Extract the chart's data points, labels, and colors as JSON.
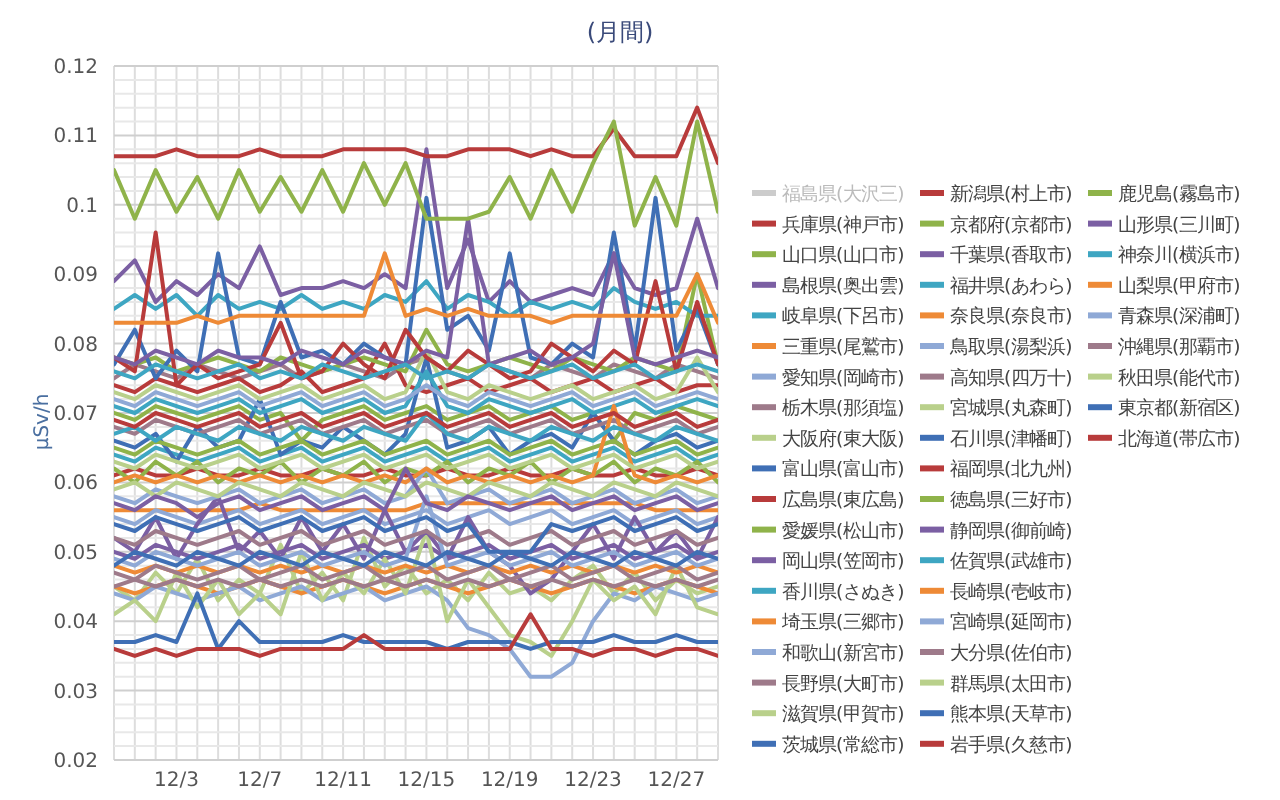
{
  "chart_data": {
    "type": "line",
    "title": "(月間)",
    "ylabel": "μSv/h",
    "x": [
      "--11-30",
      "--12-01",
      "--12-02",
      "--12-03",
      "--12-04",
      "--12-05",
      "--12-06",
      "--12-07",
      "--12-08",
      "--12-09",
      "--12-10",
      "--12-11",
      "--12-12",
      "--12-13",
      "--12-14",
      "--12-15",
      "--12-16",
      "--12-17",
      "--12-18",
      "--12-19",
      "--12-20",
      "--12-21",
      "--12-22",
      "--12-23",
      "--12-24",
      "--12-25",
      "--12-26",
      "--12-27",
      "--12-28",
      "--12-29"
    ],
    "xlim": [
      "--11-30",
      "--12-29"
    ],
    "xticks": [
      {
        "value": "--11-30",
        "label": null
      },
      {
        "value": "--12-01",
        "label": null
      },
      {
        "value": "--12-02",
        "label": null
      },
      {
        "value": "--12-03",
        "label": "12/3"
      },
      {
        "value": "--12-04",
        "label": null
      },
      {
        "value": "--12-05",
        "label": null
      },
      {
        "value": "--12-06",
        "label": null
      },
      {
        "value": "--12-07",
        "label": "12/7"
      },
      {
        "value": "--12-08",
        "label": null
      },
      {
        "value": "--12-09",
        "label": null
      },
      {
        "value": "--12-10",
        "label": null
      },
      {
        "value": "--12-11",
        "label": "12/11"
      },
      {
        "value": "--12-12",
        "label": null
      },
      {
        "value": "--12-13",
        "label": null
      },
      {
        "value": "--12-14",
        "label": null
      },
      {
        "value": "--12-15",
        "label": "12/15"
      },
      {
        "value": "--12-16",
        "label": null
      },
      {
        "value": "--12-17",
        "label": null
      },
      {
        "value": "--12-18",
        "label": null
      },
      {
        "value": "--12-19",
        "label": "12/19"
      },
      {
        "value": "--12-20",
        "label": null
      },
      {
        "value": "--12-21",
        "label": null
      },
      {
        "value": "--12-22",
        "label": null
      },
      {
        "value": "--12-23",
        "label": "12/23"
      },
      {
        "value": "--12-24",
        "label": null
      },
      {
        "value": "--12-25",
        "label": null
      },
      {
        "value": "--12-26",
        "label": null
      },
      {
        "value": "--12-27",
        "label": "12/27"
      },
      {
        "value": "--12-28",
        "label": null
      },
      {
        "value": "--12-29",
        "label": null
      }
    ],
    "ylim": [
      0.02,
      0.12
    ],
    "yticks": [
      0.02,
      {
        "value": 0.022,
        "label": null
      },
      {
        "value": 0.024,
        "label": null
      },
      {
        "value": 0.026,
        "label": null
      },
      {
        "value": 0.028,
        "label": null
      },
      0.03,
      {
        "value": 0.032,
        "label": null
      },
      {
        "value": 0.034,
        "label": null
      },
      {
        "value": 0.036,
        "label": null
      },
      {
        "value": 0.038,
        "label": null
      },
      0.04,
      {
        "value": 0.042,
        "label": null
      },
      {
        "value": 0.044,
        "label": null
      },
      {
        "value": 0.046,
        "label": null
      },
      {
        "value": 0.048,
        "label": null
      },
      0.05,
      {
        "value": 0.052,
        "label": null
      },
      {
        "value": 0.054,
        "label": null
      },
      {
        "value": 0.056,
        "label": null
      },
      {
        "value": 0.058,
        "label": null
      },
      0.06,
      {
        "value": 0.062,
        "label": null
      },
      {
        "value": 0.064,
        "label": null
      },
      {
        "value": 0.066,
        "label": null
      },
      {
        "value": 0.068,
        "label": null
      },
      0.07,
      {
        "value": 0.072,
        "label": null
      },
      {
        "value": 0.074,
        "label": null
      },
      {
        "value": 0.076,
        "label": null
      },
      {
        "value": 0.078,
        "label": null
      },
      0.08,
      {
        "value": 0.082,
        "label": null
      },
      {
        "value": 0.084,
        "label": null
      },
      {
        "value": 0.086,
        "label": null
      },
      {
        "value": 0.088,
        "label": null
      },
      0.09,
      {
        "value": 0.092,
        "label": null
      },
      {
        "value": 0.094,
        "label": null
      },
      {
        "value": 0.096,
        "label": null
      },
      {
        "value": 0.098,
        "label": null
      },
      0.1,
      {
        "value": 0.102,
        "label": null
      },
      {
        "value": 0.104,
        "label": null
      },
      {
        "value": 0.106,
        "label": null
      },
      {
        "value": 0.108,
        "label": null
      },
      0.11,
      {
        "value": 0.112,
        "label": null
      },
      {
        "value": 0.114,
        "label": null
      },
      {
        "value": 0.116,
        "label": null
      },
      {
        "value": 0.118,
        "label": null
      },
      0.12
    ],
    "grid": true,
    "legend": "right",
    "marker": "none",
    "line_style": "solid",
    "series": [
      {
        "name": "福島県(大沢三)",
        "color": "#cccccc",
        "values": [
          null,
          null,
          null,
          null,
          null,
          null,
          null,
          null,
          null,
          null,
          null,
          null,
          null,
          null,
          null,
          null,
          null,
          null,
          null,
          null,
          null,
          null,
          null,
          null,
          null,
          null,
          null,
          null,
          null,
          null
        ]
      },
      {
        "name": "兵庫県(神戸市)",
        "color": "#b83b3b",
        "values": [
          0.061,
          0.062,
          0.061,
          0.061,
          0.062,
          0.061,
          0.061,
          0.062,
          0.061,
          0.061,
          0.062,
          0.061,
          0.061,
          0.062,
          0.061,
          0.061,
          0.062,
          0.061,
          0.061,
          0.062,
          0.061,
          0.061,
          0.062,
          0.061,
          0.061,
          0.062,
          0.061,
          0.061,
          0.062,
          0.061
        ]
      },
      {
        "name": "山口県(山口市)",
        "color": "#8fb34a",
        "values": [
          0.07,
          0.069,
          0.071,
          0.07,
          0.069,
          0.07,
          0.071,
          0.069,
          0.07,
          0.066,
          0.069,
          0.07,
          0.071,
          0.069,
          0.07,
          0.071,
          0.069,
          0.07,
          0.071,
          0.069,
          0.07,
          0.071,
          0.069,
          0.07,
          0.066,
          0.07,
          0.069,
          0.071,
          0.07,
          0.069
        ]
      },
      {
        "name": "島根県(奥出雲)",
        "color": "#7b5fa3",
        "values": [
          0.089,
          0.092,
          0.086,
          0.089,
          0.087,
          0.09,
          0.088,
          0.094,
          0.087,
          0.088,
          0.088,
          0.089,
          0.088,
          0.09,
          0.088,
          0.108,
          0.088,
          0.095,
          0.086,
          0.089,
          0.086,
          0.087,
          0.088,
          0.087,
          0.093,
          0.088,
          0.087,
          0.088,
          0.098,
          0.088
        ]
      },
      {
        "name": "岐阜県(下呂市)",
        "color": "#3ea6c2",
        "values": [
          0.064,
          0.063,
          0.065,
          0.064,
          0.063,
          0.064,
          0.065,
          0.063,
          0.064,
          0.065,
          0.063,
          0.064,
          0.065,
          0.063,
          0.064,
          0.065,
          0.063,
          0.064,
          0.065,
          0.063,
          0.064,
          0.065,
          0.063,
          0.064,
          0.065,
          0.063,
          0.064,
          0.065,
          0.063,
          0.064
        ]
      },
      {
        "name": "三重県(尾鷲市)",
        "color": "#ee8a36",
        "values": [
          0.056,
          0.056,
          0.056,
          0.056,
          0.056,
          0.056,
          0.056,
          0.057,
          0.056,
          0.056,
          0.056,
          0.056,
          0.056,
          0.056,
          0.056,
          0.057,
          0.057,
          0.057,
          0.057,
          0.057,
          0.057,
          0.057,
          0.057,
          0.057,
          0.057,
          0.057,
          0.056,
          0.056,
          0.056,
          0.056
        ]
      },
      {
        "name": "愛知県(岡崎市)",
        "color": "#8fa9d6",
        "values": [
          0.055,
          0.054,
          0.056,
          0.055,
          0.054,
          0.055,
          0.056,
          0.054,
          0.055,
          0.056,
          0.054,
          0.055,
          0.056,
          0.054,
          0.055,
          0.056,
          0.054,
          0.055,
          0.056,
          0.054,
          0.055,
          0.056,
          0.054,
          0.055,
          0.056,
          0.054,
          0.055,
          0.056,
          0.054,
          0.055
        ]
      },
      {
        "name": "栃木県(那須塩)",
        "color": "#9e7a8a",
        "values": [
          0.075,
          0.077,
          0.076,
          0.075,
          0.077,
          0.076,
          0.075,
          0.076,
          0.077,
          0.075,
          0.076,
          0.077,
          0.076,
          0.075,
          0.077,
          0.078,
          0.076,
          0.075,
          0.077,
          0.076,
          0.075,
          0.077,
          0.076,
          0.075,
          0.077,
          0.076,
          0.075,
          0.077,
          0.076,
          0.075
        ]
      },
      {
        "name": "大阪府(東大阪)",
        "color": "#b9d08b",
        "values": [
          0.045,
          0.043,
          0.047,
          0.044,
          0.049,
          0.043,
          0.046,
          0.044,
          0.051,
          0.044,
          0.047,
          0.043,
          0.052,
          0.045,
          0.048,
          0.044,
          0.046,
          0.043,
          0.047,
          0.044,
          0.045,
          0.043,
          0.046,
          0.048,
          0.044,
          0.047,
          0.043,
          0.046,
          0.044,
          0.045
        ]
      },
      {
        "name": "富山県(富山市)",
        "color": "#3f6fb5",
        "values": [
          0.066,
          0.065,
          0.067,
          0.063,
          0.068,
          0.065,
          0.066,
          0.072,
          0.064,
          0.066,
          0.065,
          0.068,
          0.066,
          0.064,
          0.067,
          0.078,
          0.065,
          0.066,
          0.068,
          0.064,
          0.066,
          0.067,
          0.065,
          0.07,
          0.066,
          0.064,
          0.066,
          0.067,
          0.065,
          0.066
        ]
      },
      {
        "name": "広島県(東広島)",
        "color": "#b83b3b",
        "values": [
          0.074,
          0.073,
          0.075,
          0.074,
          0.073,
          0.074,
          0.075,
          0.073,
          0.074,
          0.076,
          0.073,
          0.074,
          0.075,
          0.08,
          0.074,
          0.073,
          0.074,
          0.075,
          0.073,
          0.074,
          0.075,
          0.073,
          0.074,
          0.075,
          0.073,
          0.074,
          0.075,
          0.073,
          0.074,
          0.074
        ]
      },
      {
        "name": "愛媛県(松山市)",
        "color": "#8fb34a",
        "values": [
          0.062,
          0.06,
          0.063,
          0.061,
          0.063,
          0.06,
          0.062,
          0.061,
          0.063,
          0.06,
          0.062,
          0.061,
          0.063,
          0.06,
          0.062,
          0.061,
          0.063,
          0.06,
          0.062,
          0.061,
          0.063,
          0.06,
          0.062,
          0.061,
          0.063,
          0.06,
          0.062,
          0.061,
          0.063,
          0.06
        ]
      },
      {
        "name": "岡山県(笠岡市)",
        "color": "#7b5fa3",
        "values": [
          0.05,
          0.049,
          0.051,
          0.05,
          0.049,
          0.05,
          0.051,
          0.049,
          0.05,
          0.051,
          0.049,
          0.05,
          0.051,
          0.049,
          0.05,
          0.051,
          0.049,
          0.05,
          0.051,
          0.049,
          0.05,
          0.051,
          0.049,
          0.05,
          0.051,
          0.049,
          0.05,
          0.051,
          0.049,
          0.05
        ]
      },
      {
        "name": "香川県(さぬき)",
        "color": "#3ea6c2",
        "values": [
          0.071,
          0.07,
          0.072,
          0.071,
          0.07,
          0.071,
          0.072,
          0.07,
          0.071,
          0.072,
          0.07,
          0.071,
          0.072,
          0.07,
          0.071,
          0.076,
          0.071,
          0.07,
          0.072,
          0.071,
          0.07,
          0.071,
          0.072,
          0.07,
          0.071,
          0.072,
          0.07,
          0.071,
          0.072,
          0.071
        ]
      },
      {
        "name": "埼玉県(三郷市)",
        "color": "#ee8a36",
        "values": [
          0.045,
          0.044,
          0.045,
          0.046,
          0.045,
          0.044,
          0.045,
          0.046,
          0.045,
          0.044,
          0.045,
          0.046,
          0.045,
          0.044,
          0.045,
          0.046,
          0.045,
          0.044,
          0.045,
          0.046,
          0.045,
          0.044,
          0.045,
          0.046,
          0.045,
          0.044,
          0.045,
          0.046,
          0.045,
          0.044
        ]
      },
      {
        "name": "和歌山(新宮市)",
        "color": "#8fa9d6",
        "values": [
          0.044,
          0.043,
          0.045,
          0.044,
          0.043,
          0.044,
          0.045,
          0.043,
          0.044,
          0.045,
          0.043,
          0.044,
          0.045,
          0.043,
          0.044,
          0.045,
          0.043,
          0.039,
          0.038,
          0.036,
          0.032,
          0.032,
          0.034,
          0.04,
          0.044,
          0.043,
          0.045,
          0.044,
          0.043,
          0.044
        ]
      },
      {
        "name": "長野県(大町市)",
        "color": "#9e7a8a",
        "values": [
          0.068,
          0.067,
          0.069,
          0.068,
          0.067,
          0.068,
          0.069,
          0.067,
          0.068,
          0.069,
          0.067,
          0.068,
          0.069,
          0.067,
          0.068,
          0.069,
          0.067,
          0.068,
          0.069,
          0.067,
          0.068,
          0.069,
          0.067,
          0.068,
          0.069,
          0.067,
          0.068,
          0.069,
          0.067,
          0.068
        ]
      },
      {
        "name": "滋賀県(甲賀市)",
        "color": "#b9d08b",
        "values": [
          0.041,
          0.043,
          0.04,
          0.047,
          0.042,
          0.046,
          0.041,
          0.044,
          0.041,
          0.05,
          0.043,
          0.047,
          0.044,
          0.049,
          0.044,
          0.053,
          0.04,
          0.046,
          0.042,
          0.038,
          0.037,
          0.035,
          0.04,
          0.046,
          0.043,
          0.045,
          0.041,
          0.048,
          0.042,
          0.041
        ]
      },
      {
        "name": "茨城県(常総市)",
        "color": "#3f6fb5",
        "values": [
          0.037,
          0.037,
          0.038,
          0.037,
          0.044,
          0.036,
          0.04,
          0.037,
          0.037,
          0.037,
          0.037,
          0.038,
          0.037,
          0.037,
          0.037,
          0.037,
          0.036,
          0.037,
          0.037,
          0.037,
          0.036,
          0.037,
          0.037,
          0.037,
          0.038,
          0.037,
          0.037,
          0.038,
          0.037,
          0.037
        ]
      },
      {
        "name": "新潟県(村上市)",
        "color": "#b83b3b",
        "values": [
          0.107,
          0.107,
          0.107,
          0.108,
          0.107,
          0.107,
          0.107,
          0.108,
          0.107,
          0.107,
          0.107,
          0.108,
          0.108,
          0.108,
          0.108,
          0.107,
          0.107,
          0.108,
          0.108,
          0.108,
          0.107,
          0.108,
          0.107,
          0.107,
          0.111,
          0.107,
          0.107,
          0.107,
          0.114,
          0.106
        ]
      },
      {
        "name": "京都府(京都市)",
        "color": "#8fb34a",
        "values": [
          0.078,
          0.077,
          0.078,
          0.076,
          0.077,
          0.078,
          0.077,
          0.076,
          0.078,
          0.077,
          0.076,
          0.077,
          0.078,
          0.077,
          0.076,
          0.082,
          0.077,
          0.076,
          0.077,
          0.078,
          0.077,
          0.076,
          0.078,
          0.077,
          0.076,
          0.078,
          0.077,
          0.076,
          0.09,
          0.077
        ]
      },
      {
        "name": "千葉県(香取市)",
        "color": "#7b5fa3",
        "values": [
          0.052,
          0.05,
          0.055,
          0.049,
          0.054,
          0.058,
          0.05,
          0.053,
          0.049,
          0.055,
          0.05,
          0.054,
          0.049,
          0.056,
          0.05,
          0.053,
          0.049,
          0.055,
          0.05,
          0.048,
          0.044,
          0.046,
          0.05,
          0.054,
          0.049,
          0.055,
          0.05,
          0.053,
          0.049,
          0.055
        ]
      },
      {
        "name": "福井県(あわら)",
        "color": "#3ea6c2",
        "values": [
          0.085,
          0.087,
          0.085,
          0.087,
          0.084,
          0.087,
          0.085,
          0.086,
          0.085,
          0.087,
          0.085,
          0.086,
          0.085,
          0.087,
          0.086,
          0.089,
          0.085,
          0.087,
          0.086,
          0.084,
          0.086,
          0.085,
          0.086,
          0.085,
          0.088,
          0.086,
          0.085,
          0.086,
          0.084,
          0.084
        ]
      },
      {
        "name": "奈良県(奈良市)",
        "color": "#ee8a36",
        "values": [
          0.048,
          0.047,
          0.048,
          0.047,
          0.048,
          0.047,
          0.048,
          0.047,
          0.048,
          0.047,
          0.048,
          0.047,
          0.048,
          0.047,
          0.048,
          0.047,
          0.048,
          0.047,
          0.048,
          0.047,
          0.048,
          0.047,
          0.048,
          0.047,
          0.048,
          0.047,
          0.048,
          0.047,
          0.048,
          0.047
        ]
      },
      {
        "name": "鳥取県(湯梨浜)",
        "color": "#8fa9d6",
        "values": [
          0.058,
          0.057,
          0.059,
          0.058,
          0.057,
          0.058,
          0.059,
          0.057,
          0.058,
          0.059,
          0.057,
          0.058,
          0.059,
          0.057,
          0.058,
          0.062,
          0.057,
          0.058,
          0.059,
          0.057,
          0.058,
          0.059,
          0.057,
          0.058,
          0.059,
          0.057,
          0.058,
          0.059,
          0.057,
          0.058
        ]
      },
      {
        "name": "高知県(四万十)",
        "color": "#9e7a8a",
        "values": [
          0.047,
          0.046,
          0.048,
          0.047,
          0.046,
          0.047,
          0.048,
          0.046,
          0.047,
          0.048,
          0.046,
          0.047,
          0.048,
          0.046,
          0.047,
          0.048,
          0.046,
          0.047,
          0.048,
          0.046,
          0.047,
          0.048,
          0.046,
          0.047,
          0.048,
          0.046,
          0.047,
          0.048,
          0.046,
          0.047
        ]
      },
      {
        "name": "宮城県(丸森町)",
        "color": "#b9d08b",
        "values": [
          0.073,
          0.072,
          0.074,
          0.073,
          0.072,
          0.073,
          0.074,
          0.072,
          0.073,
          0.074,
          0.072,
          0.073,
          0.074,
          0.072,
          0.073,
          0.079,
          0.073,
          0.072,
          0.074,
          0.073,
          0.072,
          0.073,
          0.074,
          0.072,
          0.073,
          0.074,
          0.072,
          0.073,
          0.078,
          0.073
        ]
      },
      {
        "name": "石川県(津幡町)",
        "color": "#3f6fb5",
        "values": [
          0.077,
          0.082,
          0.075,
          0.079,
          0.076,
          0.093,
          0.078,
          0.077,
          0.086,
          0.078,
          0.079,
          0.077,
          0.08,
          0.078,
          0.077,
          0.101,
          0.082,
          0.084,
          0.079,
          0.093,
          0.078,
          0.077,
          0.08,
          0.078,
          0.096,
          0.079,
          0.101,
          0.079,
          0.085,
          0.077
        ]
      },
      {
        "name": "福岡県(北九州)",
        "color": "#b83b3b",
        "values": [
          0.078,
          0.076,
          0.096,
          0.074,
          0.077,
          0.075,
          0.076,
          0.077,
          0.083,
          0.075,
          0.076,
          0.08,
          0.077,
          0.075,
          0.082,
          0.078,
          0.076,
          0.079,
          0.077,
          0.075,
          0.076,
          0.08,
          0.078,
          0.076,
          0.079,
          0.077,
          0.089,
          0.076,
          0.086,
          0.077
        ]
      },
      {
        "name": "徳島県(三好市)",
        "color": "#8fb34a",
        "values": [
          0.065,
          0.064,
          0.066,
          0.065,
          0.064,
          0.065,
          0.066,
          0.064,
          0.065,
          0.066,
          0.064,
          0.065,
          0.066,
          0.064,
          0.065,
          0.066,
          0.064,
          0.065,
          0.066,
          0.064,
          0.065,
          0.066,
          0.064,
          0.065,
          0.066,
          0.064,
          0.065,
          0.066,
          0.064,
          0.065
        ]
      },
      {
        "name": "静岡県(御前崎)",
        "color": "#7b5fa3",
        "values": [
          0.078,
          0.077,
          0.079,
          0.078,
          0.077,
          0.079,
          0.078,
          0.078,
          0.077,
          0.079,
          0.078,
          0.077,
          0.079,
          0.078,
          0.077,
          0.079,
          0.078,
          0.098,
          0.077,
          0.078,
          0.079,
          0.077,
          0.078,
          0.08,
          0.093,
          0.078,
          0.077,
          0.078,
          0.079,
          0.078
        ]
      },
      {
        "name": "佐賀県(武雄市)",
        "color": "#3ea6c2",
        "values": [
          0.076,
          0.075,
          0.077,
          0.076,
          0.075,
          0.076,
          0.077,
          0.075,
          0.076,
          0.075,
          0.077,
          0.076,
          0.075,
          0.076,
          0.077,
          0.075,
          0.076,
          0.075,
          0.077,
          0.076,
          0.075,
          0.076,
          0.077,
          0.075,
          0.076,
          0.077,
          0.075,
          0.076,
          0.077,
          0.076
        ]
      },
      {
        "name": "長崎県(壱岐市)",
        "color": "#ee8a36",
        "values": [
          0.06,
          0.061,
          0.06,
          0.061,
          0.06,
          0.061,
          0.06,
          0.061,
          0.06,
          0.061,
          0.06,
          0.061,
          0.06,
          0.061,
          0.06,
          0.062,
          0.06,
          0.061,
          0.06,
          0.061,
          0.06,
          0.061,
          0.06,
          0.061,
          0.071,
          0.061,
          0.06,
          0.061,
          0.06,
          0.061
        ]
      },
      {
        "name": "宮崎県(延岡市)",
        "color": "#8fa9d6",
        "values": [
          0.049,
          0.048,
          0.05,
          0.049,
          0.048,
          0.049,
          0.05,
          0.048,
          0.049,
          0.05,
          0.048,
          0.049,
          0.05,
          0.048,
          0.049,
          0.058,
          0.048,
          0.049,
          0.05,
          0.048,
          0.049,
          0.05,
          0.048,
          0.049,
          0.05,
          0.048,
          0.049,
          0.05,
          0.048,
          0.049
        ]
      },
      {
        "name": "大分県(佐伯市)",
        "color": "#9e7a8a",
        "values": [
          0.052,
          0.051,
          0.053,
          0.052,
          0.051,
          0.052,
          0.053,
          0.051,
          0.052,
          0.053,
          0.051,
          0.052,
          0.053,
          0.051,
          0.052,
          0.053,
          0.051,
          0.052,
          0.053,
          0.051,
          0.052,
          0.053,
          0.051,
          0.052,
          0.053,
          0.051,
          0.052,
          0.053,
          0.051,
          0.052
        ]
      },
      {
        "name": "群馬県(太田市)",
        "color": "#b9d08b",
        "values": [
          0.059,
          0.06,
          0.058,
          0.06,
          0.059,
          0.058,
          0.06,
          0.059,
          0.058,
          0.06,
          0.059,
          0.058,
          0.06,
          0.059,
          0.058,
          0.06,
          0.059,
          0.058,
          0.06,
          0.059,
          0.058,
          0.06,
          0.059,
          0.058,
          0.06,
          0.059,
          0.058,
          0.06,
          0.059,
          0.058
        ]
      },
      {
        "name": "熊本県(天草市)",
        "color": "#3f6fb5",
        "values": [
          0.048,
          0.05,
          0.049,
          0.048,
          0.05,
          0.049,
          0.048,
          0.05,
          0.049,
          0.048,
          0.05,
          0.049,
          0.048,
          0.05,
          0.049,
          0.048,
          0.05,
          0.049,
          0.048,
          0.05,
          0.049,
          0.048,
          0.05,
          0.049,
          0.048,
          0.05,
          0.049,
          0.048,
          0.05,
          0.049
        ]
      },
      {
        "name": "岩手県(久慈市)",
        "color": "#b83b3b",
        "values": [
          0.036,
          0.035,
          0.036,
          0.035,
          0.036,
          0.036,
          0.036,
          0.035,
          0.036,
          0.036,
          0.036,
          0.036,
          0.038,
          0.036,
          0.036,
          0.036,
          0.036,
          0.036,
          0.036,
          0.036,
          0.041,
          0.036,
          0.036,
          0.035,
          0.036,
          0.036,
          0.035,
          0.036,
          0.036,
          0.035
        ]
      },
      {
        "name": "鹿児島(霧島市)",
        "color": "#8fb34a",
        "values": [
          0.105,
          0.098,
          0.105,
          0.099,
          0.104,
          0.098,
          0.105,
          0.099,
          0.104,
          0.099,
          0.105,
          0.099,
          0.106,
          0.1,
          0.106,
          0.098,
          0.098,
          0.098,
          0.099,
          0.104,
          0.098,
          0.105,
          0.099,
          0.106,
          0.112,
          0.097,
          0.104,
          0.097,
          0.112,
          0.099
        ]
      },
      {
        "name": "山形県(三川町)",
        "color": "#7b5fa3",
        "values": [
          0.057,
          0.056,
          0.058,
          0.057,
          0.055,
          0.057,
          0.058,
          0.056,
          0.057,
          0.058,
          0.056,
          0.057,
          0.058,
          0.056,
          0.062,
          0.057,
          0.056,
          0.058,
          0.057,
          0.056,
          0.057,
          0.058,
          0.056,
          0.057,
          0.058,
          0.056,
          0.057,
          0.058,
          0.056,
          0.057
        ]
      },
      {
        "name": "神奈川(横浜市)",
        "color": "#3ea6c2",
        "values": [
          0.067,
          0.068,
          0.066,
          0.068,
          0.067,
          0.066,
          0.068,
          0.067,
          0.066,
          0.068,
          0.067,
          0.066,
          0.068,
          0.067,
          0.066,
          0.07,
          0.067,
          0.066,
          0.068,
          0.067,
          0.066,
          0.068,
          0.067,
          0.066,
          0.068,
          0.067,
          0.066,
          0.068,
          0.067,
          0.066
        ]
      },
      {
        "name": "山梨県(甲府市)",
        "color": "#ee8a36",
        "values": [
          0.083,
          0.083,
          0.083,
          0.083,
          0.084,
          0.083,
          0.084,
          0.084,
          0.084,
          0.084,
          0.084,
          0.084,
          0.084,
          0.093,
          0.084,
          0.085,
          0.084,
          0.085,
          0.084,
          0.084,
          0.084,
          0.083,
          0.084,
          0.084,
          0.084,
          0.084,
          0.084,
          0.084,
          0.09,
          0.083
        ]
      },
      {
        "name": "青森県(深浦町)",
        "color": "#8fa9d6",
        "values": [
          0.072,
          0.071,
          0.073,
          0.072,
          0.071,
          0.072,
          0.073,
          0.071,
          0.072,
          0.073,
          0.071,
          0.072,
          0.073,
          0.071,
          0.072,
          0.074,
          0.072,
          0.071,
          0.073,
          0.072,
          0.071,
          0.072,
          0.073,
          0.071,
          0.072,
          0.073,
          0.071,
          0.072,
          0.073,
          0.072
        ]
      },
      {
        "name": "沖縄県(那覇市)",
        "color": "#9e7a8a",
        "values": [
          0.045,
          0.046,
          0.045,
          0.046,
          0.045,
          0.046,
          0.045,
          0.046,
          0.045,
          0.046,
          0.045,
          0.046,
          0.045,
          0.046,
          0.045,
          0.046,
          0.045,
          0.046,
          0.045,
          0.046,
          0.045,
          0.046,
          0.045,
          0.046,
          0.045,
          0.046,
          0.045,
          0.046,
          0.045,
          0.046
        ]
      },
      {
        "name": "秋田県(能代市)",
        "color": "#b9d08b",
        "values": [
          0.063,
          0.062,
          0.064,
          0.063,
          0.062,
          0.063,
          0.064,
          0.062,
          0.063,
          0.064,
          0.062,
          0.063,
          0.064,
          0.062,
          0.063,
          0.064,
          0.062,
          0.063,
          0.064,
          0.062,
          0.063,
          0.064,
          0.062,
          0.063,
          0.064,
          0.062,
          0.063,
          0.064,
          0.062,
          0.063
        ]
      },
      {
        "name": "東京都(新宿区)",
        "color": "#3f6fb5",
        "values": [
          0.054,
          0.053,
          0.055,
          0.054,
          0.053,
          0.054,
          0.055,
          0.053,
          0.054,
          0.055,
          0.053,
          0.054,
          0.055,
          0.053,
          0.054,
          0.055,
          0.053,
          0.054,
          0.05,
          0.05,
          0.05,
          0.054,
          0.053,
          0.054,
          0.055,
          0.053,
          0.054,
          0.055,
          0.053,
          0.054
        ]
      },
      {
        "name": "北海道(帯広市)",
        "color": "#b83b3b",
        "values": [
          0.069,
          0.068,
          0.07,
          0.069,
          0.068,
          0.069,
          0.07,
          0.068,
          0.069,
          0.07,
          0.068,
          0.069,
          0.07,
          0.068,
          0.069,
          0.07,
          0.068,
          0.069,
          0.07,
          0.068,
          0.069,
          0.07,
          0.068,
          0.069,
          0.07,
          0.068,
          0.069,
          0.07,
          0.068,
          0.069
        ]
      }
    ]
  }
}
